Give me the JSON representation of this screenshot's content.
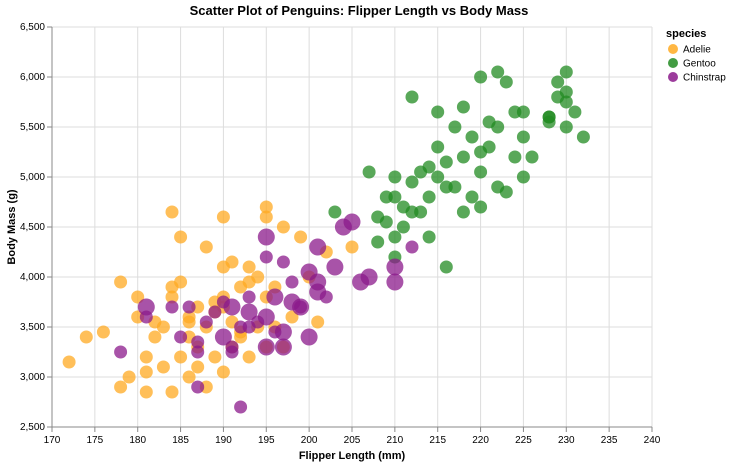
{
  "chart_data": {
    "type": "scatter",
    "title": "Scatter Plot of Penguins: Flipper Length vs Body Mass",
    "xlabel": "Flipper Length (mm)",
    "ylabel": "Body Mass (g)",
    "xlim": [
      170,
      240
    ],
    "ylim": [
      2500,
      6500
    ],
    "x_ticks": [
      "170",
      "175",
      "180",
      "185",
      "190",
      "195",
      "200",
      "205",
      "210",
      "215",
      "220",
      "225",
      "230",
      "235",
      "240"
    ],
    "y_ticks": [
      "2,500",
      "3,000",
      "3,500",
      "4,000",
      "4,500",
      "5,000",
      "5,500",
      "6,000",
      "6,500"
    ],
    "grid": true,
    "legend": {
      "title": "species",
      "position": "top-right"
    },
    "series": [
      {
        "name": "Adelie",
        "color": "#ffaa22",
        "x": [
          172,
          174,
          176,
          178,
          178,
          179,
          180,
          180,
          181,
          181,
          182,
          182,
          183,
          184,
          184,
          184,
          185,
          185,
          186,
          186,
          186,
          187,
          187,
          188,
          188,
          188,
          189,
          189,
          190,
          190,
          190,
          190,
          191,
          191,
          191,
          192,
          192,
          193,
          193,
          194,
          194,
          195,
          195,
          195,
          196,
          196,
          197,
          197,
          198,
          199,
          200,
          201,
          202,
          205,
          183,
          185,
          187,
          190,
          192,
          195,
          186,
          189,
          193,
          184,
          181
        ],
        "y": [
          3150,
          3400,
          3450,
          2900,
          3950,
          3000,
          3800,
          3600,
          2850,
          3200,
          3400,
          3550,
          3100,
          2850,
          3800,
          3900,
          3200,
          4400,
          3000,
          3400,
          3600,
          3100,
          3300,
          2900,
          3500,
          4300,
          3200,
          3650,
          3050,
          3800,
          4100,
          4600,
          3300,
          3550,
          4150,
          3400,
          3900,
          3200,
          4100,
          3500,
          4000,
          3300,
          3800,
          4600,
          3500,
          3900,
          3300,
          4500,
          3600,
          4400,
          4000,
          3550,
          4250,
          4300,
          3500,
          3950,
          3700,
          3700,
          3450,
          4700,
          3550,
          3750,
          3950,
          4650,
          3050
        ],
        "sizes": [
          2,
          2,
          2,
          2,
          2,
          2,
          2,
          2,
          2,
          2,
          2,
          2,
          2,
          2,
          2,
          2,
          2,
          2,
          2,
          2,
          2,
          2,
          2,
          2,
          2,
          2,
          2,
          2,
          2,
          2,
          2,
          2,
          2,
          2,
          2,
          2,
          2,
          2,
          2,
          2,
          2,
          2,
          2,
          2,
          2,
          2,
          2,
          2,
          2,
          2,
          2,
          2,
          2,
          2,
          2,
          2,
          2,
          2,
          2,
          2,
          2,
          2,
          2,
          2,
          2
        ]
      },
      {
        "name": "Gentoo",
        "color": "#228b22",
        "x": [
          203,
          207,
          208,
          208,
          209,
          209,
          210,
          210,
          210,
          211,
          211,
          212,
          212,
          213,
          213,
          214,
          214,
          215,
          215,
          215,
          216,
          216,
          216,
          217,
          217,
          218,
          218,
          219,
          219,
          220,
          220,
          220,
          221,
          221,
          222,
          222,
          223,
          223,
          224,
          224,
          225,
          225,
          226,
          228,
          228,
          229,
          229,
          230,
          230,
          230,
          231,
          232,
          210,
          212,
          214,
          218,
          220,
          222,
          225,
          228,
          230
        ],
        "y": [
          4650,
          5050,
          4350,
          4600,
          4550,
          4800,
          4200,
          4400,
          5000,
          4700,
          4500,
          4650,
          4950,
          5050,
          4650,
          4800,
          4400,
          5000,
          5300,
          5650,
          4100,
          4900,
          5150,
          4900,
          5500,
          5200,
          5700,
          4800,
          5400,
          5050,
          4700,
          6000,
          5550,
          5300,
          4900,
          6050,
          5950,
          4850,
          5200,
          5650,
          5400,
          5000,
          5200,
          5550,
          5600,
          5800,
          5950,
          5500,
          5750,
          6050,
          5650,
          5400,
          4800,
          5800,
          5100,
          4650,
          5250,
          5500,
          5650,
          5600,
          5850
        ],
        "sizes": [
          2,
          2,
          2,
          2,
          2,
          2,
          2,
          2,
          2,
          2,
          2,
          2,
          2,
          2,
          2,
          2,
          2,
          2,
          2,
          2,
          2,
          2,
          2,
          2,
          2,
          2,
          2,
          2,
          2,
          2,
          2,
          2,
          2,
          2,
          2,
          2,
          2,
          2,
          2,
          2,
          2,
          2,
          2,
          2,
          2,
          2,
          2,
          2,
          2,
          2,
          2,
          2,
          2,
          2,
          2,
          2,
          2,
          2,
          2,
          2,
          2
        ]
      },
      {
        "name": "Chinstrap",
        "color": "#8b1a8b",
        "x": [
          178,
          181,
          184,
          185,
          187,
          187,
          188,
          189,
          190,
          190,
          191,
          191,
          192,
          192,
          193,
          193,
          194,
          195,
          195,
          195,
          196,
          196,
          197,
          197,
          198,
          198,
          199,
          200,
          200,
          201,
          201,
          202,
          203,
          205,
          206,
          207,
          210,
          210,
          212,
          186,
          193,
          197,
          201,
          204,
          181,
          187,
          191,
          195,
          199
        ],
        "y": [
          3250,
          3700,
          3700,
          3400,
          3250,
          3350,
          3550,
          3650,
          3400,
          3750,
          3300,
          3700,
          3500,
          2700,
          3650,
          3800,
          3550,
          3300,
          4200,
          4400,
          3450,
          3800,
          3300,
          4150,
          3750,
          3950,
          3700,
          3400,
          4050,
          3850,
          4300,
          3800,
          4100,
          4550,
          3950,
          4000,
          4100,
          3950,
          4300,
          3700,
          3500,
          3450,
          3950,
          4500,
          3600,
          2900,
          3250,
          3600,
          3700
        ],
        "sizes": [
          2,
          3,
          2,
          2,
          2,
          2,
          2,
          2,
          3,
          2,
          2,
          3,
          2,
          2,
          3,
          2,
          2,
          3,
          2,
          3,
          2,
          3,
          3,
          2,
          3,
          2,
          2,
          3,
          3,
          3,
          3,
          2,
          3,
          3,
          3,
          3,
          3,
          3,
          2,
          2,
          2,
          3,
          3,
          3,
          2,
          2,
          2,
          3,
          3
        ]
      }
    ]
  }
}
